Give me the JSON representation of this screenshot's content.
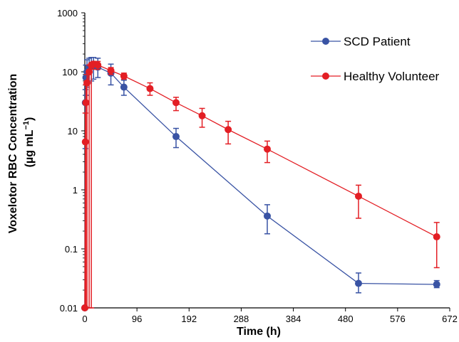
{
  "chart_data": {
    "type": "line",
    "title": "",
    "xlabel": "Time (h)",
    "ylabel_line1": "Voxelotor RBC Concentration",
    "ylabel_line2": "(µg mL",
    "ylabel_exp": "−1",
    "ylabel_close": ")",
    "xlim": [
      0,
      672
    ],
    "ylim": [
      0.01,
      1000
    ],
    "y_scale": "log",
    "x_ticks": [
      0,
      96,
      192,
      288,
      384,
      480,
      576,
      672
    ],
    "x_tick_labels": [
      "0",
      "96",
      "192",
      "288",
      "384",
      "480",
      "576",
      "672"
    ],
    "y_ticks": [
      0.01,
      0.1,
      1,
      10,
      100,
      1000
    ],
    "y_tick_labels": [
      "0.01",
      "0.1",
      "1",
      "10",
      "100",
      "1000"
    ],
    "legend_position": "top-right",
    "grid": false,
    "series": [
      {
        "name": "SCD Patient",
        "color": "#3953a4",
        "x": [
          0,
          1,
          2,
          4,
          8,
          12,
          16,
          24,
          48,
          72,
          168,
          336,
          504,
          648
        ],
        "y": [
          0.01,
          30,
          80,
          100,
          115,
          125,
          125,
          120,
          95,
          55,
          8,
          0.36,
          0.026,
          0.025
        ],
        "err_low": [
          0.01,
          5,
          40,
          55,
          65,
          70,
          75,
          80,
          60,
          40,
          5.2,
          0.18,
          0.018,
          0.022
        ],
        "err_high": [
          0.01,
          50,
          130,
          160,
          170,
          175,
          175,
          170,
          135,
          72,
          11,
          0.56,
          0.039,
          0.029
        ]
      },
      {
        "name": "Healthy Volunteer",
        "color": "#e31e24",
        "x": [
          0,
          1,
          2,
          4,
          8,
          12,
          16,
          24,
          48,
          72,
          120,
          168,
          216,
          264,
          336,
          504,
          648
        ],
        "y": [
          0.01,
          6.5,
          30,
          65,
          100,
          130,
          135,
          130,
          105,
          85,
          52,
          30,
          18,
          10.5,
          4.9,
          0.78,
          0.16
        ],
        "err_low": [
          0.01,
          0.01,
          0.01,
          0.01,
          0.01,
          0.01,
          110,
          110,
          90,
          75,
          40,
          22,
          11.5,
          6,
          2.9,
          0.33,
          0.048
        ],
        "err_high": [
          0.01,
          20,
          60,
          90,
          130,
          140,
          150,
          150,
          118,
          95,
          65,
          37,
          24,
          14.5,
          6.7,
          1.2,
          0.28
        ]
      }
    ]
  }
}
